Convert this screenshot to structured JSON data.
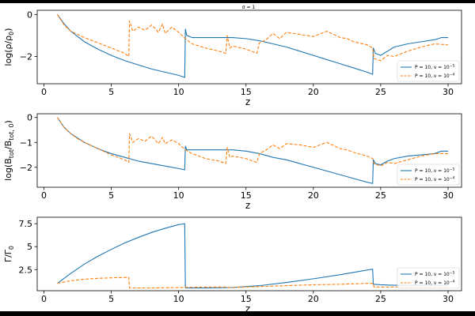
{
  "figure": {
    "title": "σ = 1"
  },
  "legend": {
    "entries": [
      {
        "label": "P = 10, ν = 10⁻⁵",
        "color": "#1f77b4",
        "dash": "solid"
      },
      {
        "label": "P = 10, ν = 10⁻⁴",
        "color": "#ff7f0e",
        "dash": "dashed"
      }
    ]
  },
  "chart_data": [
    {
      "type": "line",
      "title": "σ = 1",
      "xlabel": "z",
      "ylabel": "log(ρ/ρ₀)",
      "xlim": [
        -0.5,
        31
      ],
      "ylim": [
        -3.3,
        0.2
      ],
      "xticks": [
        0,
        5,
        10,
        15,
        20,
        25,
        30
      ],
      "yticks": [
        0,
        -2
      ],
      "grid": false,
      "legend_position": "lower right",
      "series": [
        {
          "name": "P = 10, ν = 10⁻⁵",
          "color": "#1f77b4",
          "dash": "solid",
          "x": [
            1.0,
            1.5,
            2.0,
            3.0,
            4.0,
            5.0,
            6.0,
            7.0,
            8.0,
            9.0,
            10.0,
            10.45,
            10.5,
            10.6,
            11.0,
            12.0,
            14.0,
            15.0,
            16.0,
            17.0,
            18.0,
            19.0,
            20.0,
            21.0,
            22.0,
            23.0,
            24.0,
            24.4,
            24.45,
            24.6,
            25.0,
            25.5,
            26.0,
            27.0,
            28.0,
            29.0,
            29.3,
            29.5,
            29.7,
            30.0
          ],
          "y": [
            0.0,
            -0.45,
            -0.8,
            -1.3,
            -1.65,
            -1.95,
            -2.2,
            -2.4,
            -2.6,
            -2.75,
            -2.9,
            -3.0,
            -0.7,
            -1.0,
            -1.1,
            -1.1,
            -1.1,
            -1.15,
            -1.25,
            -1.4,
            -1.55,
            -1.75,
            -1.95,
            -2.15,
            -2.35,
            -2.55,
            -2.75,
            -2.85,
            -1.6,
            -1.85,
            -1.95,
            -1.75,
            -1.55,
            -1.4,
            -1.3,
            -1.2,
            -1.15,
            -1.1,
            -1.1,
            -1.1
          ]
        },
        {
          "name": "P = 10, ν = 10⁻⁴",
          "color": "#ff7f0e",
          "dash": "dashed",
          "x": [
            1.0,
            1.5,
            2.0,
            2.5,
            3.0,
            4.0,
            5.0,
            6.0,
            6.3,
            6.35,
            6.6,
            7.0,
            7.5,
            8.0,
            8.5,
            8.8,
            9.0,
            9.5,
            10.0,
            10.5,
            11.0,
            12.0,
            13.0,
            13.5,
            13.6,
            13.8,
            14.0,
            15.0,
            15.8,
            16.0,
            16.5,
            17.0,
            17.5,
            18.0,
            19.0,
            20.0,
            21.0,
            22.0,
            22.5,
            23.0,
            24.0,
            24.4,
            24.5,
            25.0,
            25.5,
            26.0,
            27.0,
            28.0,
            29.0,
            30.0
          ],
          "y": [
            0.0,
            -0.5,
            -0.8,
            -0.95,
            -1.1,
            -1.35,
            -1.6,
            -1.85,
            -2.0,
            -0.3,
            -0.8,
            -0.6,
            -0.75,
            -0.5,
            -0.85,
            -0.45,
            -0.9,
            -0.6,
            -0.85,
            -1.15,
            -1.4,
            -1.6,
            -1.75,
            -1.85,
            -1.0,
            -1.6,
            -1.5,
            -1.65,
            -1.85,
            -1.35,
            -1.2,
            -0.9,
            -1.15,
            -0.85,
            -0.95,
            -1.05,
            -0.8,
            -1.1,
            -1.15,
            -1.3,
            -1.45,
            -1.6,
            -2.1,
            -2.2,
            -1.95,
            -2.0,
            -1.75,
            -1.55,
            -1.4,
            -1.45
          ]
        }
      ]
    },
    {
      "type": "line",
      "xlabel": "z",
      "ylabel": "log(B_tot/B_tot,0)",
      "xlim": [
        -0.5,
        31
      ],
      "ylim": [
        -2.8,
        0.15
      ],
      "xticks": [
        0,
        5,
        10,
        15,
        20,
        25,
        30
      ],
      "yticks": [
        0,
        -1,
        -2
      ],
      "grid": false,
      "legend_position": "lower right",
      "series": [
        {
          "name": "P = 10, ν = 10⁻⁵",
          "color": "#1f77b4",
          "dash": "solid",
          "x": [
            1.0,
            1.5,
            2.0,
            3.0,
            4.0,
            5.0,
            6.0,
            7.0,
            8.0,
            9.0,
            10.0,
            10.45,
            10.5,
            10.6,
            11.0,
            12.0,
            14.0,
            15.0,
            16.0,
            17.0,
            18.0,
            19.0,
            20.0,
            21.0,
            22.0,
            23.0,
            24.0,
            24.4,
            24.45,
            24.6,
            25.0,
            25.5,
            26.0,
            27.0,
            28.0,
            29.0,
            29.5,
            30.0
          ],
          "y": [
            0.0,
            -0.4,
            -0.65,
            -1.0,
            -1.25,
            -1.45,
            -1.6,
            -1.75,
            -1.85,
            -1.95,
            -2.05,
            -2.1,
            -1.15,
            -1.3,
            -1.3,
            -1.3,
            -1.3,
            -1.35,
            -1.45,
            -1.6,
            -1.7,
            -1.85,
            -2.0,
            -2.15,
            -2.3,
            -2.45,
            -2.6,
            -2.65,
            -1.7,
            -1.85,
            -1.9,
            -1.75,
            -1.65,
            -1.55,
            -1.5,
            -1.45,
            -1.35,
            -1.35
          ]
        },
        {
          "name": "P = 10, ν = 10⁻⁴",
          "color": "#ff7f0e",
          "dash": "dashed",
          "x": [
            1.0,
            1.5,
            2.0,
            2.5,
            3.0,
            4.0,
            5.0,
            6.0,
            6.3,
            6.35,
            6.6,
            7.0,
            7.5,
            8.0,
            8.5,
            8.8,
            9.0,
            9.5,
            10.0,
            10.5,
            11.0,
            12.0,
            13.0,
            13.5,
            13.6,
            13.8,
            14.0,
            15.0,
            15.8,
            16.0,
            16.5,
            17.0,
            17.5,
            18.0,
            19.0,
            20.0,
            21.0,
            22.0,
            22.5,
            23.0,
            24.0,
            24.4,
            24.5,
            25.0,
            25.5,
            26.0,
            27.0,
            28.0,
            29.0,
            30.0
          ],
          "y": [
            0.0,
            -0.4,
            -0.65,
            -0.85,
            -1.0,
            -1.25,
            -1.5,
            -1.7,
            -1.8,
            -0.65,
            -1.0,
            -0.85,
            -0.95,
            -0.75,
            -1.05,
            -0.8,
            -1.05,
            -0.9,
            -1.05,
            -1.3,
            -1.45,
            -1.65,
            -1.75,
            -1.85,
            -1.2,
            -1.6,
            -1.55,
            -1.65,
            -1.8,
            -1.45,
            -1.3,
            -1.1,
            -1.25,
            -1.05,
            -1.1,
            -1.2,
            -1.0,
            -1.25,
            -1.3,
            -1.4,
            -1.55,
            -1.65,
            -1.85,
            -1.95,
            -1.8,
            -1.85,
            -1.7,
            -1.55,
            -1.45,
            -1.45
          ]
        }
      ]
    },
    {
      "type": "line",
      "xlabel": "z",
      "ylabel": "Γ/Γ₀",
      "xlim": [
        -0.5,
        31
      ],
      "ylim": [
        0.2,
        8.2
      ],
      "xticks": [
        0,
        5,
        10,
        15,
        20,
        25,
        30
      ],
      "yticks": [
        2.5,
        5.0,
        7.5
      ],
      "grid": false,
      "legend_position": "lower right",
      "series": [
        {
          "name": "P = 10, ν = 10⁻⁵",
          "color": "#1f77b4",
          "dash": "solid",
          "x": [
            1.0,
            2.0,
            3.0,
            4.0,
            5.0,
            6.0,
            7.0,
            8.0,
            9.0,
            10.0,
            10.45,
            10.5,
            11.0,
            12.0,
            14.0,
            16.0,
            18.0,
            20.0,
            22.0,
            24.0,
            24.4,
            24.45,
            25.0,
            26.0,
            27.0,
            28.0,
            30.0
          ],
          "y": [
            1.0,
            2.1,
            3.1,
            3.95,
            4.7,
            5.4,
            6.0,
            6.55,
            7.0,
            7.4,
            7.5,
            0.5,
            0.5,
            0.5,
            0.55,
            0.75,
            1.1,
            1.5,
            1.95,
            2.45,
            2.55,
            0.9,
            0.85,
            0.8,
            0.8,
            0.8,
            0.8
          ]
        },
        {
          "name": "P = 10, ν = 10⁻⁴",
          "color": "#ff7f0e",
          "dash": "dashed",
          "x": [
            1.0,
            2.0,
            3.0,
            4.0,
            5.0,
            6.0,
            6.3,
            6.35,
            8.0,
            10.0,
            12.0,
            13.5,
            13.6,
            16.0,
            20.0,
            22.0,
            24.0,
            24.45,
            24.5,
            26.0,
            28.0,
            30.0
          ],
          "y": [
            1.0,
            1.3,
            1.45,
            1.55,
            1.6,
            1.65,
            1.65,
            0.5,
            0.5,
            0.55,
            0.6,
            0.6,
            0.55,
            0.65,
            0.85,
            0.9,
            1.0,
            1.0,
            0.6,
            0.6,
            0.6,
            0.6
          ]
        }
      ]
    }
  ]
}
